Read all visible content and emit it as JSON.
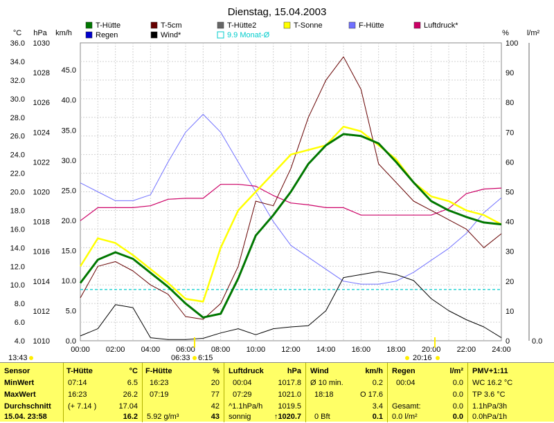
{
  "title": "Dienstag, 15.04.2003",
  "legend": [
    {
      "label": "T-Hütte",
      "color": "#007700"
    },
    {
      "label": "T-5cm",
      "color": "#660000"
    },
    {
      "label": "T-Hütte2",
      "color": "#666666"
    },
    {
      "label": "T-Sonne",
      "color": "#ffff00"
    },
    {
      "label": "F-Hütte",
      "color": "#7070ff"
    },
    {
      "label": "Luftdruck*",
      "color": "#cc0066"
    },
    {
      "label": "Regen",
      "color": "#0000cc"
    },
    {
      "label": "Wind*",
      "color": "#000000"
    },
    {
      "label": "9.9 Monat-Ø",
      "color": "#00cccc"
    }
  ],
  "axes": {
    "unit_c": "°C",
    "unit_hpa": "hPa",
    "unit_kmh": "km/h",
    "unit_pct": "%",
    "unit_rain": "l/m²",
    "temp_ticks": [
      "36.0",
      "34.0",
      "32.0",
      "30.0",
      "28.0",
      "26.0",
      "24.0",
      "22.0",
      "20.0",
      "18.0",
      "16.0",
      "14.0",
      "12.0",
      "10.0",
      "8.0",
      "6.0",
      "4.0"
    ],
    "hpa_ticks": [
      "1030",
      "1028",
      "1026",
      "1024",
      "1022",
      "1020",
      "1018",
      "1016",
      "1014",
      "1012",
      "1010"
    ],
    "kmh_ticks": [
      "45.0",
      "40.0",
      "35.0",
      "30.0",
      "25.0",
      "20.0",
      "15.0",
      "10.0",
      "5.0",
      "0.0"
    ],
    "pct_ticks": [
      "100",
      "90",
      "80",
      "70",
      "60",
      "50",
      "40",
      "30",
      "20",
      "10",
      "0"
    ],
    "rain_tick": "0.0",
    "x_ticks": [
      "00:00",
      "02:00",
      "04:00",
      "06:00",
      "08:00",
      "10:00",
      "12:00",
      "14:00",
      "16:00",
      "18:00",
      "20:00",
      "22:00",
      "24:00"
    ],
    "sunrise": "06:33",
    "sunrise2": "6:15",
    "sunset": "20:16",
    "clock": "13:43"
  },
  "chart_data": {
    "type": "line",
    "xlabel": "",
    "ylabel": "",
    "x_hours": [
      0,
      1,
      2,
      3,
      4,
      5,
      6,
      7,
      8,
      9,
      10,
      11,
      12,
      13,
      14,
      15,
      16,
      17,
      18,
      19,
      20,
      21,
      22,
      23,
      24
    ],
    "ylim_temp": [
      4,
      36
    ],
    "ylim_pct": [
      0,
      100
    ],
    "ylim_wind": [
      0,
      49.5
    ],
    "series": [
      {
        "name": "T-Hütte",
        "axis": "temp",
        "values": [
          10.2,
          12.7,
          13.5,
          12.8,
          11.3,
          9.8,
          8.0,
          6.5,
          6.9,
          10.7,
          15.3,
          17.5,
          20.0,
          23.0,
          25.0,
          26.2,
          26.0,
          25.2,
          23.2,
          21.0,
          19.0,
          18.0,
          17.3,
          16.7,
          16.5
        ]
      },
      {
        "name": "T-5cm",
        "axis": "temp",
        "values": [
          8.6,
          12.0,
          12.5,
          11.5,
          10.0,
          9.0,
          6.6,
          6.3,
          8.0,
          12.0,
          19.0,
          18.5,
          22.5,
          28.0,
          32.0,
          34.5,
          31.0,
          23.0,
          21.0,
          19.0,
          18.0,
          17.0,
          16.0,
          14.0,
          15.5
        ]
      },
      {
        "name": "T-Sonne",
        "axis": "temp",
        "values": [
          12.0,
          15.0,
          14.5,
          13.2,
          11.7,
          10.2,
          8.5,
          8.2,
          14.0,
          18.0,
          20.0,
          22.0,
          24.0,
          24.5,
          25.0,
          27.0,
          26.5,
          25.0,
          23.5,
          21.0,
          19.5,
          19.0,
          18.0,
          17.5,
          16.5
        ]
      },
      {
        "name": "F-Hütte",
        "axis": "pct",
        "values": [
          53,
          50,
          47,
          47,
          49,
          60,
          70,
          76,
          70,
          60,
          50,
          40,
          32,
          28,
          24,
          20,
          19,
          19,
          20,
          23,
          27,
          31,
          36,
          43,
          48
        ]
      },
      {
        "name": "Luftdruck*",
        "axis": "temp",
        "values": [
          16.9,
          18.3,
          18.3,
          18.3,
          18.5,
          19.2,
          19.3,
          19.3,
          20.8,
          20.8,
          20.6,
          19.6,
          18.8,
          18.6,
          18.3,
          18.3,
          17.5,
          17.5,
          17.5,
          17.5,
          17.5,
          18.2,
          19.8,
          20.3,
          20.4
        ]
      },
      {
        "name": "Wind*",
        "axis": "wind",
        "values": [
          0.8,
          2.0,
          6.0,
          5.5,
          0.5,
          0.2,
          0.2,
          0.4,
          1.3,
          2.0,
          1.0,
          2.0,
          2.3,
          2.5,
          5.0,
          10.5,
          11.0,
          11.5,
          11.0,
          10.0,
          7.0,
          5.0,
          3.5,
          2.3,
          0.5
        ]
      },
      {
        "name": "9.9 Monat-Ø",
        "axis": "temp",
        "values": [
          9.5,
          9.5,
          9.5,
          9.5,
          9.5,
          9.5,
          9.5,
          9.5,
          9.5,
          9.5,
          9.5,
          9.5,
          9.5,
          9.5,
          9.5,
          9.5,
          9.5,
          9.5,
          9.5,
          9.5,
          9.5,
          9.5,
          9.5,
          9.5,
          9.5
        ]
      }
    ]
  },
  "table": {
    "sensor": {
      "h": "Sensor",
      "min": "MinWert",
      "max": "MaxWert",
      "avg": "Durchschnitt",
      "now": "15.04. 23:58"
    },
    "thuette": {
      "h": "T-Hütte",
      "u": "°C",
      "min_t": "07:14",
      "min_v": "6.5",
      "max_t": "16:23",
      "max_v": "26.2",
      "avg_t": "(+ 7.14 )",
      "avg_v": "17.04",
      "now": "16.2"
    },
    "fhuette": {
      "h": "F-Hütte",
      "u": "%",
      "min_t": "16:23",
      "min_v": "20",
      "max_t": "07:19",
      "max_v": "77",
      "avg_v": "42",
      "now_extra": "5.92 g/m³",
      "now": "43"
    },
    "druck": {
      "h": "Luftdruck",
      "u": "hPa",
      "min_t": "00:04",
      "min_v": "1017.8",
      "max_t": "07:29",
      "max_v": "1021.0",
      "avg_t": "^1.1hPa/h",
      "avg_v": "1019.5",
      "now_t": "sonnig",
      "now": "↑1020.7"
    },
    "wind": {
      "h": "Wind",
      "u": "km/h",
      "min_t": "Ø 10 min.",
      "min_v": "0.2",
      "max_t": "18:18",
      "max_m": "O 17.6",
      "avg_v": "3.4",
      "now_t": "0 Bft",
      "now": "0.1"
    },
    "regen": {
      "h": "Regen",
      "u": "l/m²",
      "min_t": "00:04",
      "min_v": "0.0",
      "avg_t": "Gesamt:",
      "avg_v": "0.0",
      "now_t": "0.0 l/m²",
      "now": "0.0",
      "max_v": "0.0"
    },
    "pmv": {
      "h": "PMV+1:11",
      "l1": "WC 16.2 °C",
      "l2": "TP 3.6 °C",
      "l3": "1.1hPa/3h",
      "l4": "0.0hPa/1h"
    }
  }
}
